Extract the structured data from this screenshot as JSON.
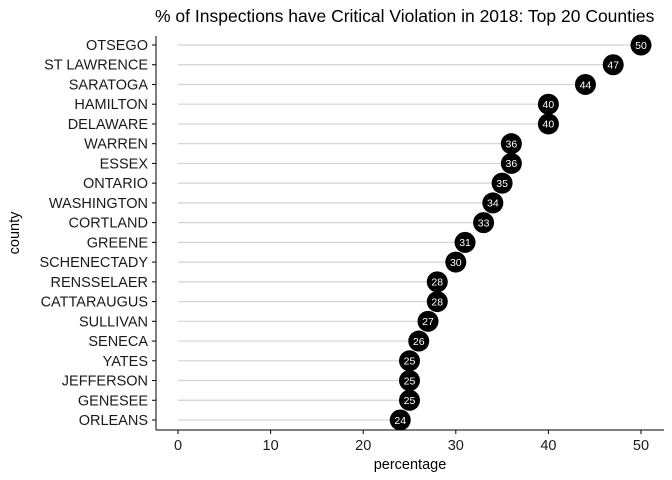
{
  "chart_data": {
    "type": "scatter",
    "style": "dot-plot with lollipop lines",
    "title": "% of Inspections have Critical Violation in 2018: Top 20 Counties",
    "xlabel": "percentage",
    "ylabel": "county",
    "xlim": [
      0,
      50
    ],
    "xticks": [
      "0",
      "10",
      "20",
      "30",
      "40",
      "50"
    ],
    "grid": "horizontal lines per category",
    "legend": "none",
    "point_color": "#000000",
    "line_color": "#d3d3d3",
    "label_color": "#ffffff",
    "categories": [
      "OTSEGO",
      "ST LAWRENCE",
      "SARATOGA",
      "HAMILTON",
      "DELAWARE",
      "WARREN",
      "ESSEX",
      "ONTARIO",
      "WASHINGTON",
      "CORTLAND",
      "GREENE",
      "SCHENECTADY",
      "RENSSELAER",
      "CATTARAUGUS",
      "SULLIVAN",
      "SENECA",
      "YATES",
      "JEFFERSON",
      "GENESEE",
      "ORLEANS"
    ],
    "values": [
      50,
      47,
      44,
      40,
      40,
      36,
      36,
      35,
      34,
      33,
      31,
      30,
      28,
      28,
      27,
      26,
      25,
      25,
      25,
      24
    ],
    "value_labels": [
      "50",
      "47",
      "44",
      "40",
      "40",
      "36",
      "36",
      "35",
      "34",
      "33",
      "31",
      "30",
      "28",
      "28",
      "27",
      "26",
      "25",
      "25",
      "25",
      "24"
    ]
  }
}
